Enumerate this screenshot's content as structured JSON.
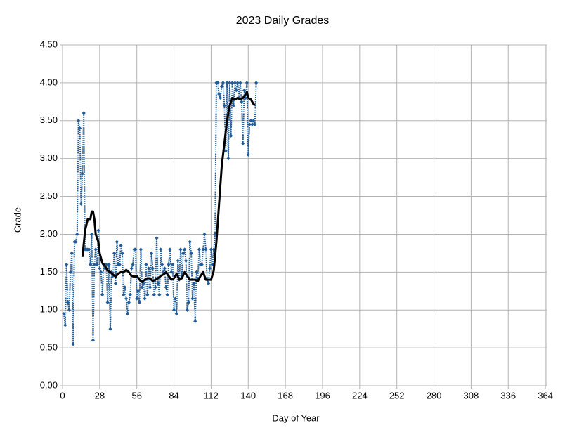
{
  "chart_data": {
    "type": "line",
    "title": "2023 Daily Grades",
    "xlabel": "Day of Year",
    "ylabel": "Grade",
    "xlim": [
      0,
      365
    ],
    "xticks": [
      0,
      28,
      56,
      84,
      112,
      140,
      168,
      196,
      224,
      252,
      280,
      308,
      336,
      364
    ],
    "ylim": [
      0,
      4.5
    ],
    "yticks": [
      {
        "value": 0,
        "label": "0.00"
      },
      {
        "value": 0.5,
        "label": "0.50"
      },
      {
        "value": 1,
        "label": "1.00"
      },
      {
        "value": 1.5,
        "label": "1.50"
      },
      {
        "value": 2,
        "label": "2.00"
      },
      {
        "value": 2.5,
        "label": "2.50"
      },
      {
        "value": 3,
        "label": "3.00"
      },
      {
        "value": 3.5,
        "label": "3.50"
      },
      {
        "value": 4,
        "label": "4.00"
      },
      {
        "value": 4.5,
        "label": "4.50"
      }
    ],
    "grid": true,
    "series": [
      {
        "color": "#1f5c99",
        "style": "dotted",
        "marker": "diamond",
        "x": [
          1,
          2,
          3,
          4,
          5,
          6,
          7,
          8,
          9,
          10,
          11,
          12,
          13,
          14,
          15,
          16,
          17,
          18,
          19,
          20,
          21,
          22,
          23,
          24,
          25,
          26,
          27,
          28,
          29,
          30,
          31,
          32,
          33,
          34,
          35,
          36,
          37,
          38,
          39,
          40,
          41,
          42,
          43,
          44,
          45,
          46,
          47,
          48,
          49,
          50,
          51,
          52,
          53,
          54,
          55,
          56,
          57,
          58,
          59,
          60,
          61,
          62,
          63,
          64,
          65,
          66,
          67,
          68,
          69,
          70,
          71,
          72,
          73,
          74,
          75,
          76,
          77,
          78,
          79,
          80,
          81,
          82,
          83,
          84,
          85,
          86,
          87,
          88,
          89,
          90,
          91,
          92,
          93,
          94,
          95,
          96,
          97,
          98,
          99,
          100,
          101,
          102,
          103,
          104,
          105,
          106,
          107,
          108,
          109,
          110,
          111,
          112,
          113,
          114,
          115,
          116,
          117,
          118,
          119,
          120,
          121,
          122,
          123,
          124,
          125,
          126,
          127,
          128,
          129,
          130,
          131,
          132,
          133,
          134,
          135,
          136,
          137,
          138,
          139,
          140,
          141,
          142,
          143,
          144,
          145,
          146
        ],
        "values": [
          0.95,
          0.8,
          1.6,
          1.1,
          1.0,
          1.5,
          1.75,
          0.55,
          1.9,
          1.9,
          2.0,
          3.5,
          3.4,
          2.4,
          2.8,
          3.6,
          1.8,
          1.8,
          1.8,
          1.8,
          1.6,
          2.0,
          0.6,
          1.6,
          1.8,
          1.6,
          2.05,
          1.55,
          1.5,
          1.2,
          1.6,
          1.55,
          1.6,
          1.1,
          1.6,
          0.75,
          1.5,
          1.45,
          1.75,
          1.35,
          1.9,
          1.6,
          1.6,
          1.85,
          1.75,
          1.2,
          1.3,
          1.15,
          0.95,
          1.1,
          1.2,
          1.55,
          1.6,
          1.8,
          1.8,
          1.15,
          1.25,
          1.1,
          1.8,
          1.3,
          1.35,
          1.15,
          1.6,
          1.2,
          1.55,
          1.3,
          1.75,
          1.55,
          1.2,
          1.3,
          1.95,
          1.35,
          1.2,
          1.8,
          1.6,
          1.5,
          1.55,
          1.3,
          1.2,
          1.6,
          1.8,
          1.5,
          1.6,
          1.0,
          1.15,
          0.95,
          1.65,
          1.4,
          1.8,
          1.45,
          1.75,
          1.8,
          1.65,
          1.0,
          1.1,
          1.9,
          1.75,
          1.15,
          1.35,
          0.85,
          1.5,
          1.4,
          1.8,
          1.6,
          1.6,
          1.8,
          2.0,
          1.8,
          1.4,
          1.35,
          1.55,
          1.8,
          1.6,
          1.8,
          2.0,
          4.0,
          4.0,
          3.85,
          3.8,
          3.95,
          4.0,
          3.7,
          3.1,
          4.0,
          3.0,
          4.0,
          3.3,
          4.0,
          3.7,
          4.0,
          3.9,
          4.0,
          3.8,
          4.0,
          3.75,
          3.2,
          3.9,
          3.8,
          4.0,
          3.05,
          3.45,
          3.5,
          3.45,
          3.5,
          3.45,
          4.0
        ]
      },
      {
        "color": "#000000",
        "style": "solid",
        "x": [
          15,
          17,
          19,
          21,
          22,
          23,
          24,
          25,
          27,
          28,
          30,
          32,
          34,
          36,
          38,
          40,
          42,
          44,
          46,
          48,
          50,
          52,
          54,
          56,
          58,
          60,
          62,
          64,
          66,
          68,
          70,
          72,
          74,
          76,
          78,
          80,
          82,
          84,
          86,
          88,
          90,
          92,
          94,
          96,
          98,
          100,
          102,
          104,
          106,
          108,
          110,
          112,
          114,
          116,
          118,
          120,
          122,
          124,
          126,
          128,
          130,
          132,
          134,
          136,
          138,
          139,
          140,
          142,
          144,
          145
        ],
        "values": [
          1.7,
          2.05,
          2.2,
          2.2,
          2.3,
          2.3,
          2.2,
          2.0,
          1.9,
          1.75,
          1.62,
          1.58,
          1.52,
          1.5,
          1.47,
          1.44,
          1.48,
          1.5,
          1.5,
          1.53,
          1.5,
          1.45,
          1.44,
          1.45,
          1.4,
          1.37,
          1.4,
          1.42,
          1.42,
          1.38,
          1.4,
          1.42,
          1.45,
          1.47,
          1.5,
          1.45,
          1.4,
          1.42,
          1.48,
          1.4,
          1.42,
          1.5,
          1.45,
          1.4,
          1.4,
          1.4,
          1.38,
          1.45,
          1.5,
          1.4,
          1.4,
          1.4,
          1.52,
          1.9,
          2.4,
          2.9,
          3.2,
          3.5,
          3.7,
          3.8,
          3.78,
          3.8,
          3.78,
          3.8,
          3.85,
          3.88,
          3.8,
          3.78,
          3.72,
          3.7
        ]
      }
    ]
  }
}
